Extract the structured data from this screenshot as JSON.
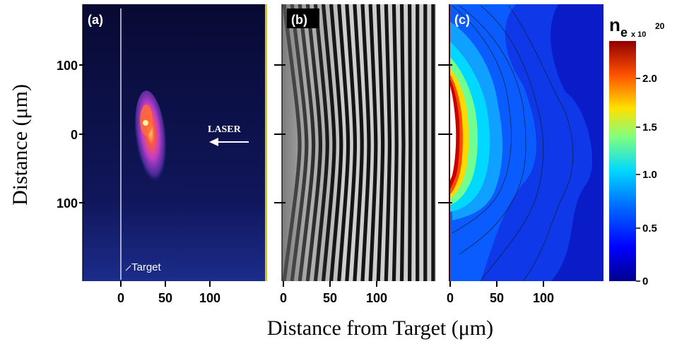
{
  "figure": {
    "y_axis_title": "Distance (μm)",
    "x_axis_title": "Distance from Target (μm)",
    "y_tick_labels": [
      "100",
      "0",
      "100"
    ],
    "x_tick_labels": [
      "0",
      "50",
      "100"
    ],
    "panels": [
      {
        "label": "(a)",
        "target_label": "Target",
        "laser_label": "LASER"
      },
      {
        "label": "(b)"
      },
      {
        "label": "(c)"
      }
    ],
    "colorbar": {
      "symbol": "n",
      "subscript": "e",
      "multiplier": "x 10",
      "exponent": "20",
      "ticks": [
        "2.0",
        "1.5",
        "1.0",
        "0.5",
        "0"
      ]
    }
  },
  "colors": {
    "panel_a_bg": "#0b0e3a",
    "colormap": [
      "#00008f",
      "#0050ff",
      "#00c8ff",
      "#7fff7f",
      "#ffd000",
      "#ff4000",
      "#8f0000"
    ]
  }
}
